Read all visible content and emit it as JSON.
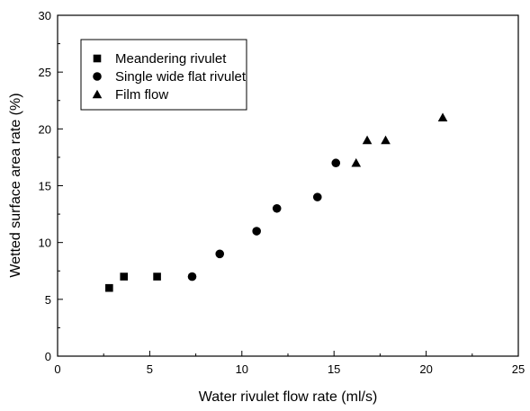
{
  "chart_data": {
    "type": "scatter",
    "title": "",
    "xlabel": "Water rivulet flow rate (ml/s)",
    "ylabel": "Wetted surface area rate (%)",
    "xlim": [
      0,
      25
    ],
    "ylim": [
      0,
      30
    ],
    "xticks": [
      0,
      5,
      10,
      15,
      20,
      25
    ],
    "yticks": [
      0,
      5,
      10,
      15,
      20,
      25,
      30
    ],
    "grid": false,
    "legend_position": "top-left",
    "series": [
      {
        "name": "Meandering rivulet",
        "marker": "square",
        "color": "#000000",
        "points": [
          {
            "x": 2.8,
            "y": 6
          },
          {
            "x": 3.6,
            "y": 7
          },
          {
            "x": 5.4,
            "y": 7
          }
        ]
      },
      {
        "name": "Single wide flat rivulet",
        "marker": "circle",
        "color": "#000000",
        "points": [
          {
            "x": 7.3,
            "y": 7
          },
          {
            "x": 8.8,
            "y": 9
          },
          {
            "x": 10.8,
            "y": 11
          },
          {
            "x": 11.9,
            "y": 13
          },
          {
            "x": 14.1,
            "y": 14
          },
          {
            "x": 15.1,
            "y": 17
          }
        ]
      },
      {
        "name": "Film flow",
        "marker": "triangle",
        "color": "#000000",
        "points": [
          {
            "x": 16.2,
            "y": 17
          },
          {
            "x": 16.8,
            "y": 19
          },
          {
            "x": 17.8,
            "y": 19
          },
          {
            "x": 20.9,
            "y": 21
          }
        ]
      }
    ]
  }
}
